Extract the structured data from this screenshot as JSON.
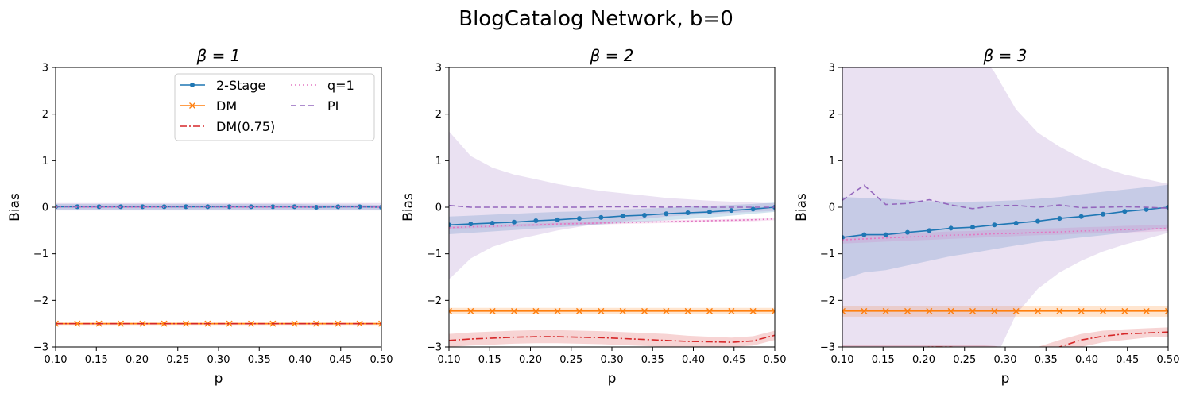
{
  "figure": {
    "title": "BlogCatalog Network, b=0"
  },
  "chart_data": [
    {
      "type": "line",
      "title": "β = 1",
      "xlabel": "p",
      "ylabel": "Bias",
      "xlim": [
        0.1,
        0.5
      ],
      "ylim": [
        -3,
        3
      ],
      "xticks": [
        "0.10",
        "0.15",
        "0.20",
        "0.25",
        "0.30",
        "0.35",
        "0.40",
        "0.45",
        "0.50"
      ],
      "yticks": [
        "−3",
        "−2",
        "−1",
        "0",
        "1",
        "2",
        "3"
      ],
      "grid": false,
      "legend": {
        "placement": "upper-right",
        "columns": 2,
        "order": [
          "2-Stage",
          "DM",
          "DM(0.75)",
          "q=1",
          "PI"
        ]
      },
      "x": [
        0.1,
        0.1267,
        0.1533,
        0.18,
        0.2067,
        0.2333,
        0.26,
        0.2867,
        0.3133,
        0.34,
        0.3667,
        0.3933,
        0.42,
        0.4467,
        0.4733,
        0.5
      ],
      "series": [
        {
          "name": "2-Stage",
          "color": "#1f77b4",
          "style": "solid",
          "marker": "dot",
          "values": [
            0.01,
            0.01,
            0.01,
            0.01,
            0.01,
            0.01,
            0.01,
            0.01,
            0.01,
            0.01,
            0.01,
            0.01,
            0.0,
            0.01,
            0.01,
            0.0
          ],
          "band_low": [
            -0.05,
            -0.05,
            -0.05,
            -0.05,
            -0.05,
            -0.05,
            -0.05,
            -0.05,
            -0.05,
            -0.05,
            -0.05,
            -0.05,
            -0.05,
            -0.05,
            -0.05,
            -0.05
          ],
          "band_high": [
            0.07,
            0.07,
            0.07,
            0.07,
            0.07,
            0.07,
            0.07,
            0.07,
            0.07,
            0.07,
            0.07,
            0.07,
            0.06,
            0.06,
            0.06,
            0.05
          ]
        },
        {
          "name": "DM",
          "color": "#ff7f0e",
          "style": "solid",
          "marker": "x",
          "values": [
            -2.5,
            -2.5,
            -2.5,
            -2.5,
            -2.5,
            -2.5,
            -2.5,
            -2.5,
            -2.5,
            -2.5,
            -2.5,
            -2.5,
            -2.5,
            -2.5,
            -2.5,
            -2.5
          ],
          "band_low": [
            -2.53,
            -2.53,
            -2.53,
            -2.53,
            -2.53,
            -2.53,
            -2.53,
            -2.53,
            -2.53,
            -2.53,
            -2.53,
            -2.53,
            -2.53,
            -2.53,
            -2.53,
            -2.53
          ],
          "band_high": [
            -2.47,
            -2.47,
            -2.47,
            -2.47,
            -2.47,
            -2.47,
            -2.47,
            -2.47,
            -2.47,
            -2.47,
            -2.47,
            -2.47,
            -2.47,
            -2.47,
            -2.47,
            -2.47
          ]
        },
        {
          "name": "DM(0.75)",
          "color": "#d62728",
          "style": "dashdot",
          "marker": "none",
          "values": [
            -2.5,
            -2.5,
            -2.5,
            -2.5,
            -2.5,
            -2.5,
            -2.5,
            -2.5,
            -2.5,
            -2.5,
            -2.5,
            -2.5,
            -2.5,
            -2.5,
            -2.5,
            -2.5
          ]
        },
        {
          "name": "q=1",
          "color": "#e377c2",
          "style": "dotted",
          "marker": "none",
          "values": [
            0.0,
            0.0,
            0.0,
            0.0,
            0.0,
            0.0,
            0.0,
            0.0,
            0.0,
            0.0,
            0.0,
            0.0,
            0.0,
            0.0,
            0.0,
            0.0
          ]
        },
        {
          "name": "PI",
          "color": "#9467bd",
          "style": "dashed",
          "marker": "none",
          "values": [
            0.02,
            0.02,
            0.02,
            0.02,
            0.02,
            0.02,
            0.02,
            0.02,
            0.02,
            0.02,
            0.02,
            0.02,
            0.02,
            0.02,
            0.02,
            0.02
          ],
          "band_low": [
            -0.07,
            -0.07,
            -0.07,
            -0.07,
            -0.07,
            -0.07,
            -0.07,
            -0.07,
            -0.07,
            -0.07,
            -0.07,
            -0.07,
            -0.07,
            -0.07,
            -0.07,
            -0.07
          ],
          "band_high": [
            0.09,
            0.09,
            0.09,
            0.09,
            0.09,
            0.09,
            0.09,
            0.09,
            0.09,
            0.09,
            0.09,
            0.09,
            0.09,
            0.09,
            0.09,
            0.09
          ]
        }
      ]
    },
    {
      "type": "line",
      "title": "β = 2",
      "xlabel": "p",
      "ylabel": "Bias",
      "xlim": [
        0.1,
        0.5
      ],
      "ylim": [
        -3,
        3
      ],
      "xticks": [
        "0.10",
        "0.15",
        "0.20",
        "0.25",
        "0.30",
        "0.35",
        "0.40",
        "0.45",
        "0.50"
      ],
      "yticks": [
        "−3",
        "−2",
        "−1",
        "0",
        "1",
        "2",
        "3"
      ],
      "grid": false,
      "x": [
        0.1,
        0.1267,
        0.1533,
        0.18,
        0.2067,
        0.2333,
        0.26,
        0.2867,
        0.3133,
        0.34,
        0.3667,
        0.3933,
        0.42,
        0.4467,
        0.4733,
        0.5
      ],
      "series": [
        {
          "name": "2-Stage",
          "color": "#1f77b4",
          "style": "solid",
          "marker": "dot",
          "values": [
            -0.38,
            -0.36,
            -0.34,
            -0.32,
            -0.29,
            -0.27,
            -0.24,
            -0.22,
            -0.19,
            -0.17,
            -0.14,
            -0.12,
            -0.1,
            -0.07,
            -0.04,
            0.0
          ],
          "band_low": [
            -0.58,
            -0.55,
            -0.52,
            -0.49,
            -0.46,
            -0.43,
            -0.4,
            -0.37,
            -0.34,
            -0.31,
            -0.28,
            -0.25,
            -0.22,
            -0.18,
            -0.14,
            -0.1
          ],
          "band_high": [
            -0.2,
            -0.18,
            -0.16,
            -0.14,
            -0.12,
            -0.1,
            -0.09,
            -0.07,
            -0.05,
            -0.03,
            -0.01,
            0.01,
            0.03,
            0.05,
            0.07,
            0.1
          ]
        },
        {
          "name": "DM",
          "color": "#ff7f0e",
          "style": "solid",
          "marker": "x",
          "values": [
            -2.23,
            -2.23,
            -2.23,
            -2.23,
            -2.23,
            -2.23,
            -2.23,
            -2.23,
            -2.23,
            -2.23,
            -2.23,
            -2.23,
            -2.23,
            -2.23,
            -2.23,
            -2.23
          ],
          "band_low": [
            -2.3,
            -2.3,
            -2.3,
            -2.3,
            -2.3,
            -2.3,
            -2.3,
            -2.3,
            -2.3,
            -2.3,
            -2.3,
            -2.3,
            -2.3,
            -2.3,
            -2.3,
            -2.3
          ],
          "band_high": [
            -2.16,
            -2.16,
            -2.16,
            -2.16,
            -2.16,
            -2.16,
            -2.16,
            -2.16,
            -2.16,
            -2.16,
            -2.16,
            -2.16,
            -2.16,
            -2.16,
            -2.16,
            -2.16
          ]
        },
        {
          "name": "DM(0.75)",
          "color": "#d62728",
          "style": "dashdot",
          "marker": "none",
          "values": [
            -2.86,
            -2.83,
            -2.81,
            -2.79,
            -2.78,
            -2.78,
            -2.79,
            -2.8,
            -2.82,
            -2.84,
            -2.86,
            -2.88,
            -2.89,
            -2.9,
            -2.87,
            -2.75
          ],
          "band_low": [
            -3.0,
            -2.97,
            -2.95,
            -2.93,
            -2.92,
            -2.92,
            -2.93,
            -2.94,
            -2.96,
            -2.98,
            -3.0,
            -3.0,
            -3.0,
            -3.0,
            -2.97,
            -2.85
          ],
          "band_high": [
            -2.72,
            -2.69,
            -2.67,
            -2.65,
            -2.64,
            -2.64,
            -2.65,
            -2.66,
            -2.68,
            -2.7,
            -2.72,
            -2.76,
            -2.78,
            -2.8,
            -2.77,
            -2.65
          ]
        },
        {
          "name": "q=1",
          "color": "#e377c2",
          "style": "dotted",
          "marker": "none",
          "values": [
            -0.44,
            -0.42,
            -0.41,
            -0.39,
            -0.38,
            -0.36,
            -0.35,
            -0.34,
            -0.33,
            -0.32,
            -0.31,
            -0.3,
            -0.29,
            -0.28,
            -0.27,
            -0.25
          ],
          "band_low": [
            -0.47,
            -0.45,
            -0.44,
            -0.42,
            -0.41,
            -0.39,
            -0.38,
            -0.37,
            -0.36,
            -0.35,
            -0.34,
            -0.33,
            -0.32,
            -0.31,
            -0.3,
            -0.28
          ],
          "band_high": [
            -0.41,
            -0.39,
            -0.38,
            -0.36,
            -0.35,
            -0.33,
            -0.32,
            -0.31,
            -0.3,
            -0.29,
            -0.28,
            -0.27,
            -0.26,
            -0.25,
            -0.24,
            -0.22
          ]
        },
        {
          "name": "PI",
          "color": "#9467bd",
          "style": "dashed",
          "marker": "none",
          "values": [
            0.04,
            0.0,
            0.0,
            0.0,
            0.0,
            0.0,
            0.0,
            0.01,
            0.01,
            0.01,
            0.0,
            0.01,
            0.0,
            0.0,
            0.0,
            0.0
          ],
          "band_low": [
            -1.55,
            -1.1,
            -0.85,
            -0.7,
            -0.6,
            -0.5,
            -0.42,
            -0.35,
            -0.3,
            -0.25,
            -0.2,
            -0.17,
            -0.14,
            -0.12,
            -0.1,
            -0.08
          ],
          "band_high": [
            1.63,
            1.1,
            0.85,
            0.7,
            0.6,
            0.5,
            0.42,
            0.35,
            0.3,
            0.25,
            0.2,
            0.17,
            0.14,
            0.12,
            0.1,
            0.08
          ]
        }
      ]
    },
    {
      "type": "line",
      "title": "β = 3",
      "xlabel": "p",
      "ylabel": "Bias",
      "xlim": [
        0.1,
        0.5
      ],
      "ylim": [
        -3,
        3
      ],
      "xticks": [
        "0.10",
        "0.15",
        "0.20",
        "0.25",
        "0.30",
        "0.35",
        "0.40",
        "0.45",
        "0.50"
      ],
      "yticks": [
        "−3",
        "−2",
        "−1",
        "0",
        "1",
        "2",
        "3"
      ],
      "grid": false,
      "x": [
        0.1,
        0.1267,
        0.1533,
        0.18,
        0.2067,
        0.2333,
        0.26,
        0.2867,
        0.3133,
        0.34,
        0.3667,
        0.3933,
        0.42,
        0.4467,
        0.4733,
        0.5
      ],
      "series": [
        {
          "name": "2-Stage",
          "color": "#1f77b4",
          "style": "solid",
          "marker": "dot",
          "values": [
            -0.65,
            -0.59,
            -0.59,
            -0.54,
            -0.5,
            -0.45,
            -0.43,
            -0.38,
            -0.34,
            -0.3,
            -0.24,
            -0.2,
            -0.15,
            -0.09,
            -0.05,
            0.0
          ],
          "band_low": [
            -1.55,
            -1.4,
            -1.35,
            -1.25,
            -1.15,
            -1.05,
            -0.98,
            -0.9,
            -0.82,
            -0.75,
            -0.7,
            -0.65,
            -0.6,
            -0.55,
            -0.5,
            -0.45
          ],
          "band_high": [
            0.22,
            0.2,
            0.18,
            0.15,
            0.13,
            0.12,
            0.12,
            0.13,
            0.15,
            0.18,
            0.22,
            0.28,
            0.33,
            0.38,
            0.43,
            0.48
          ]
        },
        {
          "name": "DM",
          "color": "#ff7f0e",
          "style": "solid",
          "marker": "x",
          "values": [
            -2.23,
            -2.23,
            -2.23,
            -2.23,
            -2.23,
            -2.23,
            -2.23,
            -2.23,
            -2.23,
            -2.23,
            -2.23,
            -2.23,
            -2.23,
            -2.23,
            -2.23,
            -2.23
          ],
          "band_low": [
            -2.35,
            -2.35,
            -2.35,
            -2.35,
            -2.35,
            -2.35,
            -2.35,
            -2.35,
            -2.35,
            -2.35,
            -2.35,
            -2.35,
            -2.35,
            -2.35,
            -2.35,
            -2.35
          ],
          "band_high": [
            -2.13,
            -2.13,
            -2.13,
            -2.13,
            -2.13,
            -2.13,
            -2.13,
            -2.13,
            -2.13,
            -2.13,
            -2.13,
            -2.13,
            -2.13,
            -2.13,
            -2.13,
            -2.13
          ]
        },
        {
          "name": "DM(0.75)",
          "color": "#d62728",
          "style": "dashdot",
          "marker": "none",
          "values": [
            -3.3,
            -3.2,
            -3.1,
            -3.05,
            -3.0,
            -3.0,
            -3.05,
            -3.15,
            -3.2,
            -3.15,
            -3.0,
            -2.85,
            -2.77,
            -2.72,
            -2.7,
            -2.68
          ],
          "band_low": [
            -3.5,
            -3.4,
            -3.3,
            -3.25,
            -3.2,
            -3.2,
            -3.25,
            -3.35,
            -3.4,
            -3.35,
            -3.2,
            -3.0,
            -2.9,
            -2.85,
            -2.8,
            -2.78
          ],
          "band_high": [
            -2.95,
            -2.95,
            -2.95,
            -2.95,
            -2.95,
            -2.95,
            -2.95,
            -2.98,
            -3.05,
            -3.0,
            -2.85,
            -2.72,
            -2.65,
            -2.62,
            -2.6,
            -2.58
          ]
        },
        {
          "name": "q=1",
          "color": "#e377c2",
          "style": "dotted",
          "marker": "none",
          "values": [
            -0.7,
            -0.68,
            -0.66,
            -0.64,
            -0.62,
            -0.6,
            -0.59,
            -0.57,
            -0.56,
            -0.54,
            -0.53,
            -0.51,
            -0.5,
            -0.48,
            -0.47,
            -0.45
          ],
          "band_low": [
            -0.78,
            -0.76,
            -0.74,
            -0.72,
            -0.7,
            -0.68,
            -0.66,
            -0.64,
            -0.62,
            -0.6,
            -0.59,
            -0.57,
            -0.56,
            -0.54,
            -0.53,
            -0.51
          ],
          "band_high": [
            -0.62,
            -0.6,
            -0.58,
            -0.56,
            -0.54,
            -0.52,
            -0.51,
            -0.49,
            -0.48,
            -0.46,
            -0.45,
            -0.43,
            -0.42,
            -0.4,
            -0.39,
            -0.37
          ]
        },
        {
          "name": "PI",
          "color": "#9467bd",
          "style": "dashed",
          "marker": "none",
          "values": [
            0.15,
            0.47,
            0.06,
            0.08,
            0.16,
            0.05,
            -0.03,
            0.03,
            0.04,
            0.0,
            0.05,
            -0.01,
            0.0,
            0.01,
            0.0,
            -0.02
          ],
          "band_low": [
            -3.5,
            -3.5,
            -3.5,
            -3.5,
            -3.5,
            -3.5,
            -3.5,
            -3.3,
            -2.3,
            -1.75,
            -1.4,
            -1.15,
            -0.95,
            -0.8,
            -0.68,
            -0.55
          ],
          "band_high": [
            3.5,
            3.5,
            3.5,
            3.5,
            3.5,
            3.5,
            3.5,
            2.9,
            2.1,
            1.6,
            1.3,
            1.05,
            0.85,
            0.7,
            0.6,
            0.5
          ]
        }
      ]
    }
  ]
}
